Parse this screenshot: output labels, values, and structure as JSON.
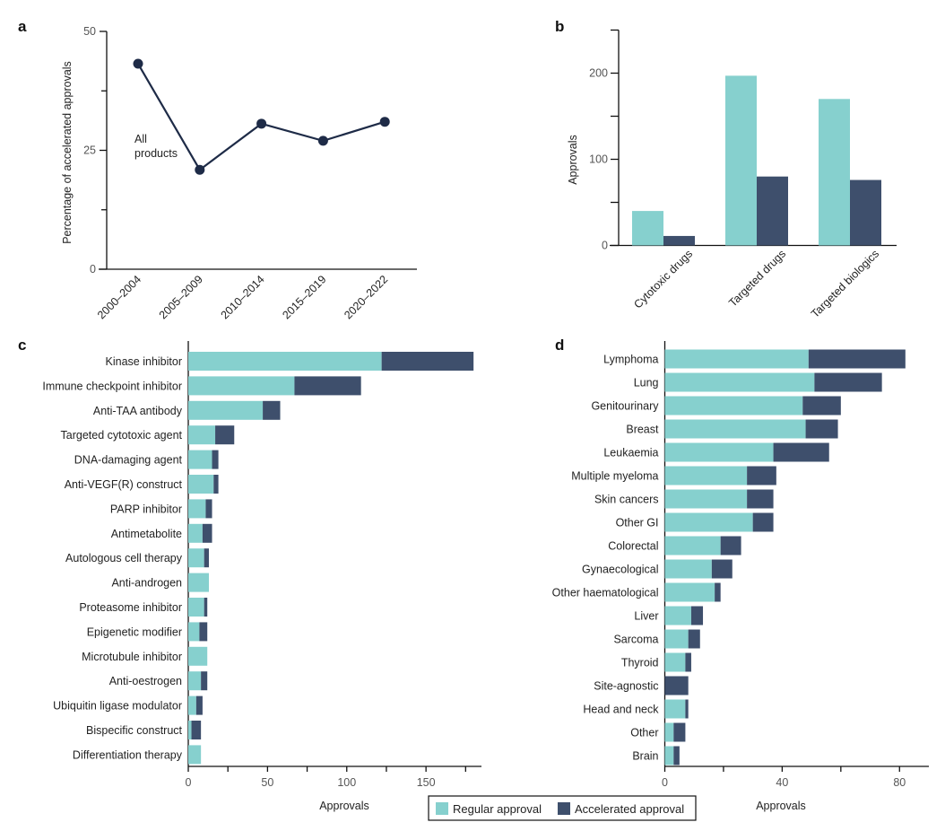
{
  "colors": {
    "regular": "#86d0ce",
    "accelerated": "#3e4f6c",
    "line": "#1e2b47"
  },
  "legend": {
    "regular_label": "Regular approval",
    "accelerated_label": "Accelerated approval"
  },
  "chart_data": [
    {
      "panel": "a",
      "type": "line",
      "title": "",
      "xlabel": "",
      "ylabel": "Percentage of accelerated approvals",
      "categories": [
        "2000–2004",
        "2005–2009",
        "2010–2014",
        "2015–2019",
        "2020–2022"
      ],
      "series": [
        {
          "name": "All products",
          "values": [
            43.2,
            20.9,
            30.6,
            27.0,
            31.0
          ]
        }
      ],
      "annotation": [
        "All",
        "products"
      ],
      "ylim": [
        0,
        50
      ],
      "yticks": [
        0,
        25,
        50
      ],
      "yminor": [
        12.5,
        37.5
      ],
      "grid": false
    },
    {
      "panel": "b",
      "type": "bar",
      "title": "",
      "xlabel": "",
      "ylabel": "Approvals",
      "categories": [
        "Cytotoxic drugs",
        "Targeted drugs",
        "Targeted biologics"
      ],
      "series": [
        {
          "name": "Regular approval",
          "values": [
            40,
            197,
            170
          ]
        },
        {
          "name": "Accelerated approval",
          "values": [
            11,
            80,
            76
          ]
        }
      ],
      "ylim": [
        0,
        250
      ],
      "yticks": [
        0,
        100,
        200
      ],
      "yminor": [
        50,
        150,
        250
      ],
      "grid": false
    },
    {
      "panel": "c",
      "type": "bar",
      "orientation": "horizontal-stacked",
      "title": "",
      "xlabel": "Approvals",
      "ylabel": "",
      "categories": [
        "Kinase inhibitor",
        "Immune checkpoint inhibitor",
        "Anti-TAA antibody",
        "Targeted cytotoxic agent",
        "DNA-damaging agent",
        "Anti-VEGF(R) construct",
        "PARP inhibitor",
        "Antimetabolite",
        "Autologous cell therapy",
        "Anti-androgen",
        "Proteasome inhibitor",
        "Epigenetic modifier",
        "Microtubule inhibitor",
        "Anti-oestrogen",
        "Ubiquitin ligase modulator",
        "Bispecific construct",
        "Differentiation therapy"
      ],
      "series": [
        {
          "name": "Regular approval",
          "values": [
            122,
            67,
            47,
            17,
            15,
            16,
            11,
            9,
            10,
            13,
            10,
            7,
            12,
            8,
            5,
            2,
            8
          ]
        },
        {
          "name": "Accelerated approval",
          "values": [
            58,
            42,
            11,
            12,
            4,
            3,
            4,
            6,
            3,
            0,
            2,
            5,
            0,
            4,
            4,
            6,
            0
          ]
        }
      ],
      "xlim": [
        0,
        185
      ],
      "xticks": [
        0,
        50,
        100,
        150
      ],
      "xminor": [
        25,
        75,
        125,
        175
      ],
      "grid": false
    },
    {
      "panel": "d",
      "type": "bar",
      "orientation": "horizontal-stacked",
      "title": "",
      "xlabel": "Approvals",
      "ylabel": "",
      "categories": [
        "Lymphoma",
        "Lung",
        "Genitourinary",
        "Breast",
        "Leukaemia",
        "Multiple myeloma",
        "Skin cancers",
        "Other GI",
        "Colorectal",
        "Gynaecological",
        "Other haematological",
        "Liver",
        "Sarcoma",
        "Thyroid",
        "Site-agnostic",
        "Head and neck",
        "Other",
        "Brain"
      ],
      "series": [
        {
          "name": "Regular approval",
          "values": [
            49,
            51,
            47,
            48,
            37,
            28,
            28,
            30,
            19,
            16,
            17,
            9,
            8,
            7,
            0,
            7,
            3,
            3
          ]
        },
        {
          "name": "Accelerated approval",
          "values": [
            33,
            23,
            13,
            11,
            19,
            10,
            9,
            7,
            7,
            7,
            2,
            4,
            4,
            2,
            8,
            1,
            4,
            2
          ]
        }
      ],
      "xlim": [
        0,
        90
      ],
      "xticks": [
        0,
        40,
        80
      ],
      "xminor": [
        20,
        60
      ],
      "grid": false
    }
  ]
}
